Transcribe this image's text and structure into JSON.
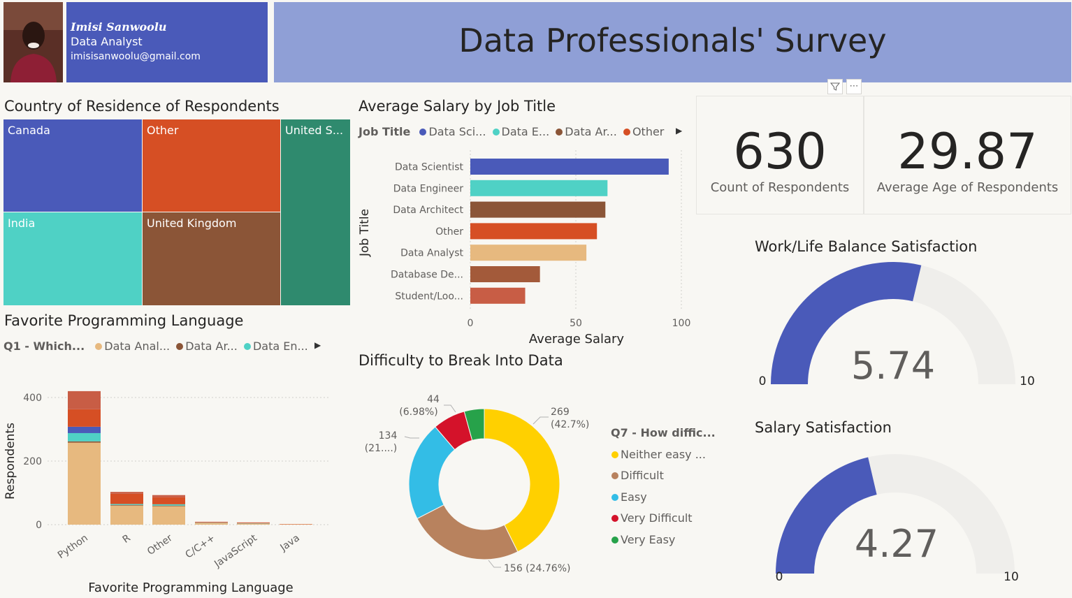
{
  "profile": {
    "name": "Imisi Sanwoolu",
    "role": "Data Analyst",
    "email": "imisisanwoolu@gmail.com"
  },
  "header": {
    "title": "Data Professionals' Survey"
  },
  "colors": {
    "blue": "#4a5ab9",
    "orange": "#d64f24",
    "teal": "#4fd1c5",
    "brown": "#8b5537",
    "green": "#2f8a6e",
    "tan": "#e7b97f",
    "rust": "#c85d45"
  },
  "toolbar": {
    "filter_icon": "filter-icon",
    "more_icon": "more-options-icon"
  },
  "treemap": {
    "title": "Country of Residence of Respondents",
    "tiles": [
      {
        "label": "Canada"
      },
      {
        "label": "Other"
      },
      {
        "label": "United S..."
      },
      {
        "label": "India"
      },
      {
        "label": "United Kingdom"
      }
    ]
  },
  "salary_chart": {
    "title": "Average Salary by Job Title",
    "legend_title": "Job Title",
    "legend": [
      "Data Sci...",
      "Data E...",
      "Data Ar...",
      "Other"
    ],
    "ylabel": "Job Title",
    "xlabel": "Average Salary",
    "ticks": [
      "0",
      "50",
      "100"
    ]
  },
  "kpis": {
    "respondents": {
      "value": "630",
      "label": "Count of Respondents"
    },
    "age": {
      "value": "29.87",
      "label": "Average Age of Respondents"
    }
  },
  "lang_chart": {
    "title": "Favorite Programming Language",
    "legend_title": "Q1 - Which...",
    "legend": [
      "Data Anal...",
      "Data Ar...",
      "Data En..."
    ],
    "ylabel": "Respondents",
    "xlabel": "Favorite Programming Language",
    "yticks": [
      "400",
      "200",
      "0"
    ]
  },
  "donut_chart": {
    "title": "Difficulty to Break Into Data",
    "legend_title": "Q7 - How diffic...",
    "legend": [
      "Neither easy ...",
      "Difficult",
      "Easy",
      "Very Difficult",
      "Very Easy"
    ],
    "labels": [
      {
        "line1": "269",
        "line2": "(42.7%)"
      },
      {
        "line1": "156 (24.76%)",
        "line2": ""
      },
      {
        "line1": "134",
        "line2": "(21....)"
      },
      {
        "line1": "44",
        "line2": "(6.98%)"
      }
    ]
  },
  "gauge_wlb": {
    "title": "Work/Life Balance Satisfaction",
    "value": "5.74",
    "min": "0",
    "max": "10"
  },
  "gauge_salary": {
    "title": "Salary Satisfaction",
    "value": "4.27",
    "min": "0",
    "max": "10"
  },
  "chart_data": [
    {
      "type": "treemap",
      "title": "Country of Residence of Respondents",
      "categories": [
        "Canada",
        "Other",
        "United S...",
        "India",
        "United Kingdom"
      ]
    },
    {
      "type": "bar",
      "orientation": "horizontal",
      "title": "Average Salary by Job Title",
      "categories": [
        "Data Scientist",
        "Data Engineer",
        "Data Architect",
        "Other",
        "Data Analyst",
        "Database De...",
        "Student/Loo..."
      ],
      "values": [
        94,
        65,
        64,
        60,
        55,
        33,
        26
      ],
      "colors": [
        "#4a5ab9",
        "#4fd1c5",
        "#8b5537",
        "#d64f24",
        "#e7b97f",
        "#a35a3a",
        "#c85d45"
      ],
      "xlabel": "Average Salary",
      "ylabel": "Job Title",
      "xlim": [
        0,
        100
      ]
    },
    {
      "type": "bar",
      "stacked": true,
      "title": "Favorite Programming Language",
      "categories": [
        "Python",
        "R",
        "Other",
        "C/C++",
        "JavaScript",
        "Java"
      ],
      "series": [
        {
          "name": "Data Anal...",
          "color": "#e7b97f",
          "values": [
            258,
            60,
            58,
            5,
            3,
            1
          ]
        },
        {
          "name": "Data Ar...",
          "color": "#8b5537",
          "values": [
            4,
            2,
            2,
            0,
            0,
            0
          ]
        },
        {
          "color": "#4fd1c5",
          "values": [
            26,
            3,
            4,
            1,
            1,
            0
          ]
        },
        {
          "color": "#4a5ab9",
          "values": [
            20,
            0,
            0,
            0,
            0,
            0
          ]
        },
        {
          "color": "#d64f24",
          "values": [
            55,
            32,
            22,
            2,
            2,
            1
          ]
        },
        {
          "color": "#c85d45",
          "values": [
            57,
            6,
            7,
            1,
            1,
            0
          ]
        }
      ],
      "xlabel": "Favorite Programming Language",
      "ylabel": "Respondents",
      "ylim": [
        0,
        420
      ]
    },
    {
      "type": "pie",
      "donut": true,
      "title": "Difficulty to Break Into Data",
      "categories": [
        "Neither easy ...",
        "Difficult",
        "Easy",
        "Very Difficult",
        "Very Easy"
      ],
      "values": [
        269,
        156,
        134,
        44,
        27
      ],
      "colors": [
        "#ffd000",
        "#b8825e",
        "#33bde6",
        "#d4122a",
        "#27a24a"
      ]
    },
    {
      "type": "gauge",
      "title": "Work/Life Balance Satisfaction",
      "value": 5.74,
      "min": 0,
      "max": 10
    },
    {
      "type": "gauge",
      "title": "Salary Satisfaction",
      "value": 4.27,
      "min": 0,
      "max": 10
    }
  ]
}
